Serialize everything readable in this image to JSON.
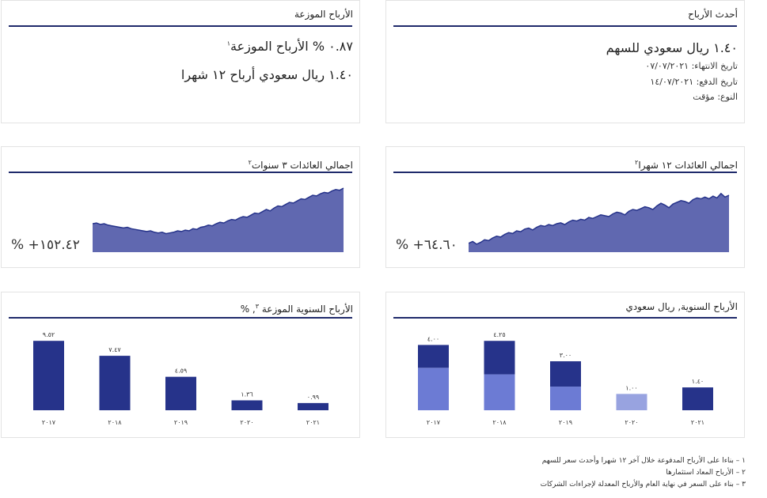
{
  "latest_dividend": {
    "title": "أحدث الأرباح",
    "amount": "١.٤٠ ريال سعودي للسهم",
    "end_date": "تاريخ الانتهاء: ٠٧/٠٧/٢٠٢١",
    "pay_date": "تاريخ الدفع: ١٤/٠٧/٢٠٢١",
    "type": "النوع: مؤقت"
  },
  "distributed_dividends": {
    "title": "الأرباح الموزعة",
    "yield_line": "٠.٨٧ % الأرباح الموزعة",
    "yield_note": "١",
    "twelve_month_line": "١.٤٠ ريال سعودي أرباح ١٢ شهرا"
  },
  "total_return_12m": {
    "title": "اجمالي العائدات ١٢ شهرا",
    "note": "٢",
    "value": "% +٦٤.٦٠"
  },
  "total_return_3y": {
    "title": "اجمالي العائدات ٣ سنوات",
    "note": "٢",
    "value": "% +١٥٢.٤٢"
  },
  "annual_dividends_sar": {
    "title": "الأرباح السنوية, ريال سعودي"
  },
  "annual_dividend_yield": {
    "title": "الأرباح السنوية الموزعة",
    "note": "٣",
    "unit": ", %"
  },
  "chart_data": [
    {
      "type": "bar",
      "title": "الأرباح السنوية, ريال سعودي",
      "categories": [
        "٢٠١٧",
        "٢٠١٨",
        "٢٠١٩",
        "٢٠٢٠",
        "٢٠٢١"
      ],
      "values": [
        4.0,
        4.25,
        3.0,
        1.0,
        1.4
      ],
      "labels": [
        "٤.٠٠",
        "٤.٢٥",
        "٣.٠٠",
        "١.٠٠",
        "١.٤٠"
      ],
      "stacked_parts": [
        [
          2.6,
          1.4
        ],
        [
          2.2,
          2.05
        ],
        [
          1.45,
          1.55
        ],
        [
          1.0,
          0
        ],
        [
          0,
          1.4
        ]
      ],
      "colors": {
        "lower": "#6c7bd4",
        "upper": "#26338a",
        "single_2020": "#98a3e0"
      },
      "ylim": [
        0,
        4.6
      ]
    },
    {
      "type": "bar",
      "title": "الأرباح السنوية الموزعة , %",
      "categories": [
        "٢٠١٧",
        "٢٠١٨",
        "٢٠١٩",
        "٢٠٢٠",
        "٢٠٢١"
      ],
      "values": [
        9.52,
        7.47,
        4.59,
        1.36,
        0.99
      ],
      "labels": [
        "٩.٥٢",
        "٧.٤٧",
        "٤.٥٩",
        "١.٣٦",
        "٠.٩٩"
      ],
      "color": "#26338a",
      "ylim": [
        0,
        10.3
      ]
    },
    {
      "type": "area",
      "title": "اجمالي العائدات ١٢ شهرا",
      "values": [
        10,
        12,
        9,
        11,
        14,
        13,
        16,
        18,
        17,
        20,
        22,
        21,
        24,
        23,
        26,
        27,
        25,
        28,
        30,
        29,
        31,
        30,
        32,
        33,
        31,
        34,
        36,
        35,
        37,
        36,
        39,
        38,
        40,
        42,
        41,
        40,
        43,
        45,
        44,
        42,
        46,
        48,
        47,
        49,
        51,
        50,
        48,
        52,
        55,
        53,
        50,
        54,
        56,
        58,
        57,
        55,
        59,
        61,
        60,
        62,
        60,
        63,
        61,
        66,
        62,
        64
      ],
      "color": "#6068b0",
      "ylim": [
        0,
        80
      ]
    },
    {
      "type": "area",
      "title": "اجمالي العائدات ٣ سنوات",
      "values": [
        40,
        41,
        39,
        40,
        38,
        37,
        36,
        35,
        34,
        35,
        33,
        32,
        31,
        30,
        29,
        30,
        28,
        27,
        28,
        26,
        27,
        28,
        30,
        29,
        31,
        30,
        33,
        32,
        35,
        36,
        38,
        37,
        40,
        42,
        41,
        44,
        46,
        45,
        48,
        50,
        49,
        52,
        55,
        54,
        57,
        60,
        58,
        62,
        65,
        64,
        67,
        70,
        69,
        72,
        75,
        74,
        77,
        80,
        79,
        82,
        84,
        83,
        86,
        88,
        87,
        90
      ],
      "color": "#6068b0",
      "ylim": [
        0,
        100
      ]
    }
  ],
  "footnotes": [
    "١ – بناءا على الأرباح المدفوعة خلال آخر ١٢ شهرا وأحدث سعر للسهم",
    "٢ – الأرباح المعاد استثمارها",
    "٣ – بناء على السعر في نهاية العام والأرباح المعدلة لإجراءات الشركات"
  ]
}
